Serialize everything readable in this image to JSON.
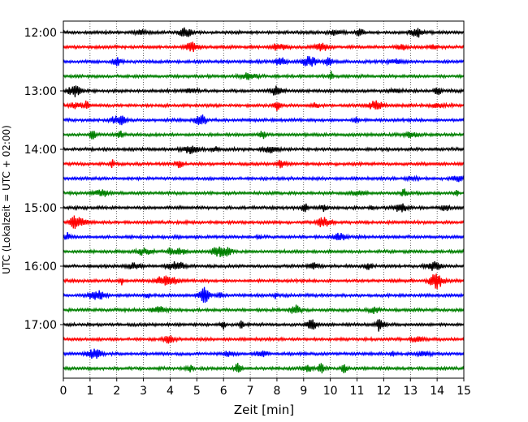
{
  "chart_data": {
    "type": "line",
    "title": "",
    "xlabel": "Zeit  [min]",
    "ylabel": "UTC (Lokalzeit = UTC + 02:00)",
    "xlim": [
      0,
      15
    ],
    "x_ticks": [
      0,
      1,
      2,
      3,
      4,
      5,
      6,
      7,
      8,
      9,
      10,
      11,
      12,
      13,
      14,
      15
    ],
    "x_tick_labels": [
      "0",
      "1",
      "2",
      "3",
      "4",
      "5",
      "6",
      "7",
      "8",
      "9",
      "10",
      "11",
      "12",
      "13",
      "14",
      "15"
    ],
    "y_tick_labels": [
      "12:00",
      "13:00",
      "14:00",
      "15:00",
      "16:00",
      "17:00"
    ],
    "grid": "vertical dotted lines at each minute",
    "colors": [
      "#000000",
      "#ff0000",
      "#0000ff",
      "#008000"
    ],
    "trace_interval_minutes": 15,
    "traces": [
      {
        "start": "12:00",
        "color": "#000000"
      },
      {
        "start": "12:15",
        "color": "#ff0000"
      },
      {
        "start": "12:30",
        "color": "#0000ff"
      },
      {
        "start": "12:45",
        "color": "#008000"
      },
      {
        "start": "13:00",
        "color": "#000000"
      },
      {
        "start": "13:15",
        "color": "#ff0000"
      },
      {
        "start": "13:30",
        "color": "#0000ff"
      },
      {
        "start": "13:45",
        "color": "#008000"
      },
      {
        "start": "14:00",
        "color": "#000000"
      },
      {
        "start": "14:15",
        "color": "#ff0000"
      },
      {
        "start": "14:30",
        "color": "#0000ff"
      },
      {
        "start": "14:45",
        "color": "#008000"
      },
      {
        "start": "15:00",
        "color": "#000000"
      },
      {
        "start": "15:15",
        "color": "#ff0000"
      },
      {
        "start": "15:30",
        "color": "#0000ff"
      },
      {
        "start": "15:45",
        "color": "#008000"
      },
      {
        "start": "16:00",
        "color": "#000000"
      },
      {
        "start": "16:15",
        "color": "#ff0000"
      },
      {
        "start": "16:30",
        "color": "#0000ff"
      },
      {
        "start": "16:45",
        "color": "#008000"
      },
      {
        "start": "17:00",
        "color": "#000000"
      },
      {
        "start": "17:15",
        "color": "#ff0000"
      },
      {
        "start": "17:30",
        "color": "#0000ff"
      },
      {
        "start": "17:45",
        "color": "#008000"
      }
    ]
  }
}
